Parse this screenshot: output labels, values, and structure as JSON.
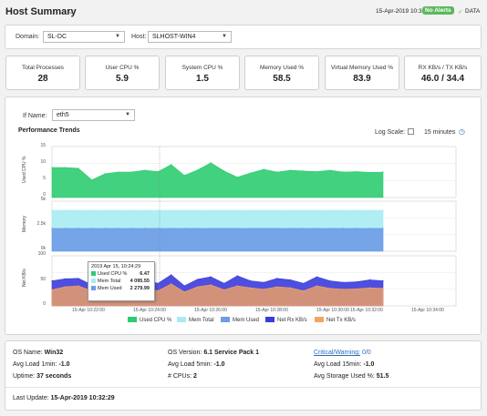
{
  "header": {
    "title": "Host Summary",
    "timestamp": "15-Apr-2019 10:35",
    "alerts_badge": "No Alerts",
    "data_label": "DATA",
    "badge_color": "#5cb85c"
  },
  "filters": {
    "domain_label": "Domain:",
    "domain_value": "SL-DC",
    "host_label": "Host:",
    "host_value": "SLHOST-WIN4"
  },
  "kpis": [
    {
      "title": "Total Processes",
      "value": "28"
    },
    {
      "title": "User CPU %",
      "value": "5.9"
    },
    {
      "title": "System CPU %",
      "value": "1.5"
    },
    {
      "title": "Memory Used %",
      "value": "58.5"
    },
    {
      "title": "Virtual Memory Used %",
      "value": "83.9"
    },
    {
      "title": "RX KB/s / TX KB/s",
      "value": "46.0 / 34.4"
    }
  ],
  "trends": {
    "ifname_label": "If Name:",
    "ifname_value": "eth5",
    "section_title": "Performance Trends",
    "log_scale_label": "Log Scale:",
    "range_label": "15 minutes",
    "cpu_axis_label": "Used CPU %",
    "mem_axis_label": "Memory",
    "net_axis_label": "Net KB/s",
    "cpu_ticks": [
      "15",
      "10",
      "5",
      "0"
    ],
    "mem_ticks": [
      "5k",
      "2.5k",
      "0k"
    ],
    "net_ticks": [
      "100",
      "50",
      "0"
    ],
    "x_ticks": [
      "15-Apr 10:22:00",
      "15-Apr 10:24:00",
      "15-Apr 10:26:00",
      "15-Apr 10:28:00",
      "15-Apr 10:30:00",
      "15-Apr 10:32:00",
      "15-Apr 10:34:00"
    ],
    "tooltip": {
      "time": "2019 Apr 15, 10:24:29",
      "rows": [
        {
          "label": "Used CPU %",
          "value": "6.47",
          "color": "#2ecc71"
        },
        {
          "label": "Mem Total",
          "value": "4 095.55",
          "color": "#a7ecf2"
        },
        {
          "label": "Mem Used",
          "value": "2 279.99",
          "color": "#6f9be8"
        }
      ]
    },
    "legend": [
      {
        "label": "Used CPU %",
        "color": "#2ecc71"
      },
      {
        "label": "Mem Total",
        "color": "#a7ecf2"
      },
      {
        "label": "Mem Used",
        "color": "#6f9be8"
      },
      {
        "label": "Net Rx KB/s",
        "color": "#3b3bdc"
      },
      {
        "label": "Net Tx KB/s",
        "color": "#f4a460"
      }
    ]
  },
  "chart_data": [
    {
      "type": "area",
      "ylabel": "Used CPU %",
      "ylim": [
        0,
        15
      ],
      "series": [
        {
          "name": "Used CPU %",
          "values": [
            8.8,
            8.8,
            8.6,
            5.2,
            7.0,
            7.5,
            7.5,
            8.0,
            7.6,
            9.7,
            6.5,
            8.1,
            10.2,
            7.8,
            6.0,
            7.2,
            8.3,
            7.5,
            8.0,
            7.8,
            7.6,
            8.0,
            7.5,
            7.6,
            7.4,
            7.5
          ]
        }
      ]
    },
    {
      "type": "area",
      "ylabel": "Memory",
      "ylim": [
        0,
        5000
      ],
      "series": [
        {
          "name": "Mem Total",
          "values": [
            4095,
            4095,
            4095,
            4095,
            4095,
            4095,
            4095,
            4095,
            4095,
            4095,
            4095,
            4095,
            4095,
            4095,
            4095,
            4095,
            4095,
            4095,
            4095,
            4095,
            4095,
            4095,
            4095,
            4095,
            4095,
            4095
          ]
        },
        {
          "name": "Mem Used",
          "values": [
            2280,
            2280,
            2280,
            2280,
            2280,
            2280,
            2280,
            2280,
            2280,
            2280,
            2280,
            2280,
            2280,
            2280,
            2280,
            2280,
            2280,
            2280,
            2280,
            2280,
            2280,
            2280,
            2280,
            2280,
            2280,
            2280
          ]
        }
      ]
    },
    {
      "type": "area",
      "ylabel": "Net KB/s",
      "ylim": [
        0,
        100
      ],
      "series": [
        {
          "name": "Net Rx KB/s",
          "values": [
            50,
            54,
            55,
            42,
            48,
            47,
            55,
            52,
            45,
            62,
            40,
            53,
            58,
            45,
            60,
            50,
            47,
            55,
            52,
            45,
            58,
            50,
            47,
            48,
            52,
            50
          ]
        },
        {
          "name": "Net Tx KB/s",
          "values": [
            32,
            38,
            40,
            30,
            35,
            34,
            40,
            36,
            30,
            44,
            28,
            38,
            42,
            32,
            40,
            36,
            33,
            38,
            36,
            30,
            40,
            35,
            33,
            34,
            36,
            35
          ]
        }
      ]
    }
  ],
  "info": {
    "os_name_label": "OS Name:",
    "os_name": "Win32",
    "os_version_label": "OS Version:",
    "os_version": "6.1 Service Pack 1",
    "critical_label": "Critical/Warning:",
    "critical_value": "0/0",
    "load1_label": "Avg Load 1min:",
    "load1": "-1.0",
    "load5_label": "Avg Load 5min:",
    "load5": "-1.0",
    "load15_label": "Avg Load 15min:",
    "load15": "-1.0",
    "uptime_label": "Uptime:",
    "uptime": "37 seconds",
    "cpus_label": "# CPUs:",
    "cpus": "2",
    "storage_label": "Avg Storage Used %:",
    "storage": "51.5",
    "last_update_label": "Last Update:",
    "last_update": "15-Apr-2019 10:32:29"
  }
}
